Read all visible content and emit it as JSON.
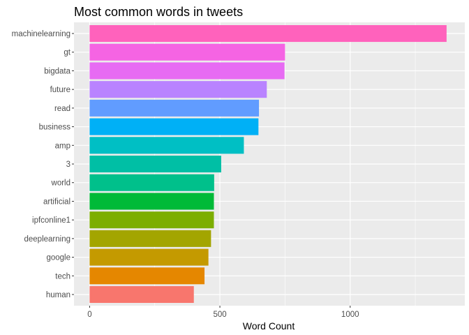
{
  "chart_data": {
    "type": "bar",
    "orientation": "horizontal",
    "title": "Most common words in tweets",
    "xlabel": "Word Count",
    "ylabel": "",
    "categories": [
      "machinelearning",
      "gt",
      "bigdata",
      "future",
      "read",
      "business",
      "amp",
      "3",
      "world",
      "artificial",
      "ipfconline1",
      "deeplearning",
      "google",
      "tech",
      "human"
    ],
    "values": [
      1370,
      750,
      748,
      680,
      650,
      648,
      592,
      505,
      478,
      477,
      477,
      466,
      456,
      441,
      400
    ],
    "colors": [
      "#FF62BC",
      "#F564E3",
      "#E76BF3",
      "#B983FF",
      "#619CFF",
      "#00B0F6",
      "#00BFC4",
      "#00BFA5",
      "#00C08B",
      "#00BA38",
      "#7CAE00",
      "#A3A500",
      "#C49A00",
      "#E58700",
      "#F8766D"
    ],
    "xlim": [
      -60,
      1440
    ],
    "xticks": [
      0,
      500,
      1000
    ],
    "xtick_labels": [
      "0",
      "500",
      "1000"
    ],
    "grid": true,
    "legend": "none",
    "panel_background": "#EBEBEB"
  }
}
